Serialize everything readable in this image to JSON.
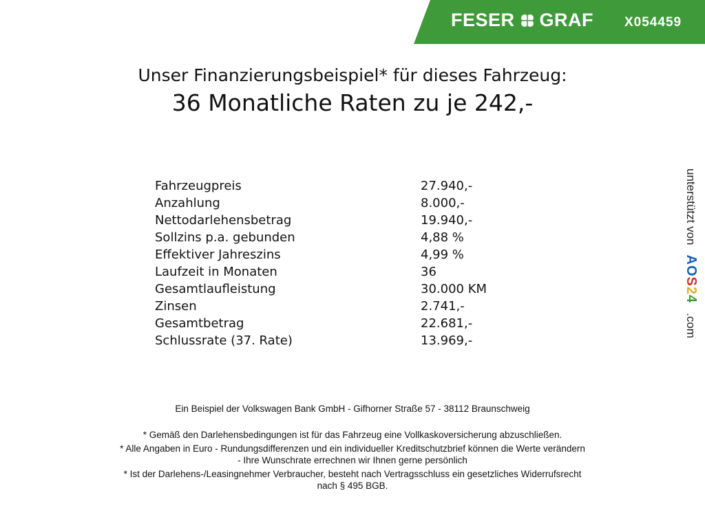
{
  "header": {
    "brand_left": "FESER",
    "brand_right": "GRAF",
    "vehicle_code": "X054459",
    "brand_color": "#3f9a3a",
    "logo_icon": "clover-icon"
  },
  "title": {
    "line1": "Unser Finanzierungsbeispiel* für dieses Fahrzeug:",
    "line2": "36 Monatliche Raten zu je 242,-"
  },
  "financing": [
    {
      "label": "Fahrzeugpreis",
      "value": "27.940,-"
    },
    {
      "label": "Anzahlung",
      "value": "8.000,-"
    },
    {
      "label": "Nettodarlehensbetrag",
      "value": "19.940,-"
    },
    {
      "label": "Sollzins p.a. gebunden",
      "value": "4,88 %"
    },
    {
      "label": "Effektiver Jahreszins",
      "value": "4,99 %"
    },
    {
      "label": "Laufzeit in Monaten",
      "value": "36"
    },
    {
      "label": "Gesamtlaufleistung",
      "value": "30.000 KM"
    },
    {
      "label": "Zinsen",
      "value": "2.741,-"
    },
    {
      "label": "Gesamtbetrag",
      "value": "22.681,-"
    },
    {
      "label": "Schlussrate (37. Rate)",
      "value": "13.969,-"
    }
  ],
  "side": {
    "text": "unterstützt von",
    "logo": "AOS24",
    "suffix": ".com"
  },
  "footer": {
    "bank": "Ein Beispiel der Volkswagen Bank GmbH - Gifhorner Straße 57 - 38112 Braunschweig",
    "notes": [
      "* Gemäß den Darlehensbedingungen ist für das Fahrzeug eine Vollkaskoversicherung abzuschließen.",
      "* Alle Angaben in Euro - Rundungsdifferenzen und ein individueller Kreditschutzbrief können die Werte verändern",
      "- Ihre Wunschrate errechnen wir Ihnen gerne persönlich",
      "* Ist der Darlehens-/Leasingnehmer Verbraucher, besteht nach Vertragsschluss ein gesetzliches Widerrufsrecht",
      "nach § 495 BGB."
    ]
  }
}
